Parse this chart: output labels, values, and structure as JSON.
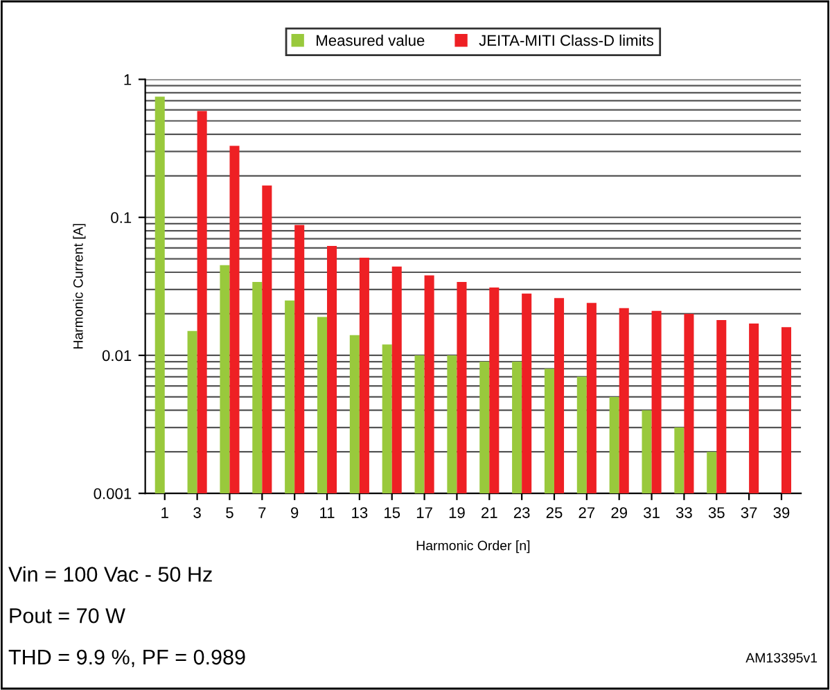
{
  "chart_data": {
    "type": "bar",
    "xlabel": "Harmonic Order [n]",
    "ylabel": "Harmonic Current [A]",
    "categories": [
      "1",
      "3",
      "5",
      "7",
      "9",
      "11",
      "13",
      "15",
      "17",
      "19",
      "21",
      "23",
      "25",
      "27",
      "29",
      "31",
      "33",
      "35",
      "37",
      "39"
    ],
    "series": [
      {
        "name": "Measured value",
        "color": "#99c93c",
        "values": [
          0.75,
          0.015,
          0.045,
          0.034,
          0.025,
          0.019,
          0.014,
          0.012,
          0.01,
          0.01,
          0.009,
          0.009,
          0.008,
          0.007,
          0.005,
          0.004,
          0.003,
          0.002,
          null,
          null
        ]
      },
      {
        "name": "JEITA-MITI Class-D limits",
        "color": "#ee2024",
        "values": [
          null,
          0.59,
          0.33,
          0.17,
          0.088,
          0.062,
          0.051,
          0.044,
          0.038,
          0.034,
          0.031,
          0.028,
          0.026,
          0.024,
          0.022,
          0.021,
          0.02,
          0.018,
          0.017,
          0.016
        ]
      }
    ],
    "log": "y",
    "ylim": [
      0.001,
      1
    ],
    "yticks": [
      0.001,
      0.01,
      0.1,
      1
    ],
    "grid": "y",
    "legend": "top",
    "annotations": [
      "Vin = 100 Vac - 50 Hz",
      "Pout = 70 W",
      "THD = 9.9 %, PF = 0.989",
      "AM13395v1"
    ]
  }
}
